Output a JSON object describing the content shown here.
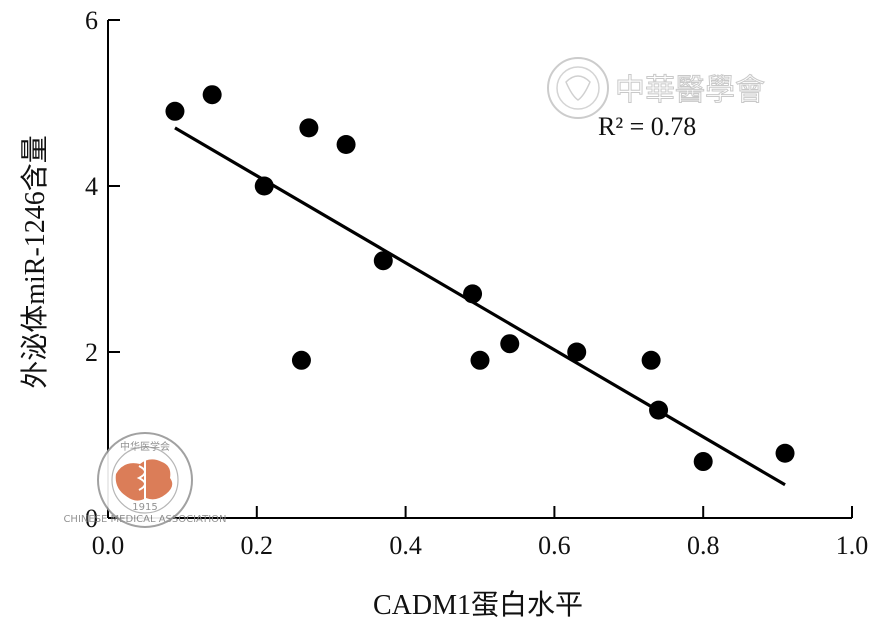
{
  "chart_data": {
    "type": "scatter",
    "xlabel": "CADM1蛋白水平",
    "ylabel": "外泌体miR-1246含量",
    "xlim": [
      0,
      1.0
    ],
    "ylim": [
      0,
      6
    ],
    "x_ticks": [
      "0.0",
      "0.2",
      "0.4",
      "0.6",
      "0.8",
      "1.0"
    ],
    "y_ticks": [
      "0",
      "2",
      "4",
      "6"
    ],
    "x_tick_values": [
      0,
      0.2,
      0.4,
      0.6,
      0.8,
      1.0
    ],
    "y_tick_values": [
      0,
      2,
      4,
      6
    ],
    "grid": false,
    "points": [
      {
        "x": 0.09,
        "y": 4.9
      },
      {
        "x": 0.14,
        "y": 5.1
      },
      {
        "x": 0.21,
        "y": 4.0
      },
      {
        "x": 0.26,
        "y": 1.9
      },
      {
        "x": 0.27,
        "y": 4.7
      },
      {
        "x": 0.32,
        "y": 4.5
      },
      {
        "x": 0.37,
        "y": 3.1
      },
      {
        "x": 0.49,
        "y": 2.7
      },
      {
        "x": 0.5,
        "y": 1.9
      },
      {
        "x": 0.54,
        "y": 2.1
      },
      {
        "x": 0.63,
        "y": 2.0
      },
      {
        "x": 0.73,
        "y": 1.9
      },
      {
        "x": 0.74,
        "y": 1.3
      },
      {
        "x": 0.8,
        "y": 0.68
      },
      {
        "x": 0.91,
        "y": 0.78
      }
    ],
    "trendline": {
      "x": [
        0.09,
        0.91
      ],
      "y": [
        4.7,
        0.4
      ]
    },
    "annotation": "R² = 0.78",
    "point_color": "#000000",
    "line_color": "#000000"
  },
  "watermark": {
    "text": "中華醫學會",
    "seal_text": "中华医学会",
    "seal_year": "1915",
    "seal_en": "CHINESE MEDICAL ASSOCIATION",
    "seal_color": "#d9734a"
  }
}
